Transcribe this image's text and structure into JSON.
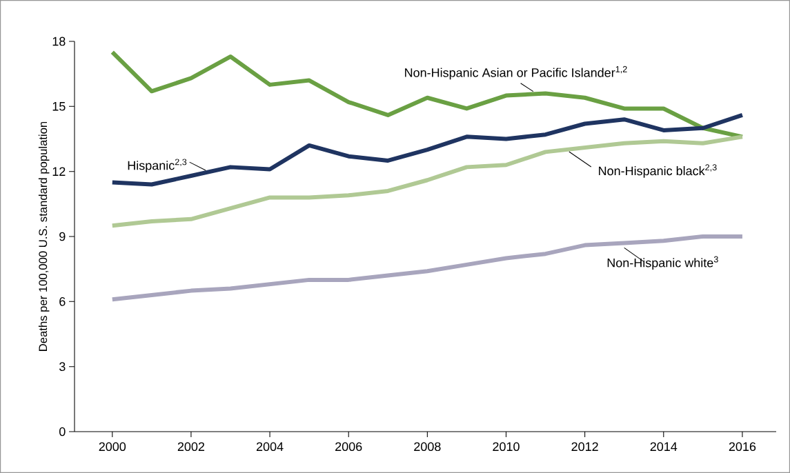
{
  "chart_data": {
    "type": "line",
    "ylabel": "Deaths per 100,000 U.S. standard population",
    "x": [
      2000,
      2001,
      2002,
      2003,
      2004,
      2005,
      2006,
      2007,
      2008,
      2009,
      2010,
      2011,
      2012,
      2013,
      2014,
      2015,
      2016
    ],
    "series": [
      {
        "name": "Non-Hispanic Asian or Pacific Islander$^{1,2}$",
        "color": "#6aa043",
        "values": [
          17.5,
          15.7,
          16.3,
          17.3,
          16.0,
          16.2,
          15.2,
          14.6,
          15.4,
          14.9,
          15.5,
          15.6,
          15.4,
          14.9,
          14.9,
          14.0,
          13.6
        ]
      },
      {
        "name": "Hispanic$^{2,3}$",
        "color": "#1f3461",
        "values": [
          11.5,
          11.4,
          11.8,
          12.2,
          12.1,
          13.2,
          12.7,
          12.5,
          13.0,
          13.6,
          13.5,
          13.7,
          14.2,
          14.4,
          13.9,
          14.0,
          14.6
        ]
      },
      {
        "name": "Non-Hispanic black$^{2,3}$",
        "color": "#b0c994",
        "values": [
          9.5,
          9.7,
          9.8,
          10.3,
          10.8,
          10.8,
          10.9,
          11.1,
          11.6,
          12.2,
          12.3,
          12.9,
          13.1,
          13.3,
          13.4,
          13.3,
          13.6
        ]
      },
      {
        "name": "Non-Hispanic white$^{3}$",
        "color": "#a8a5bd",
        "values": [
          6.1,
          6.3,
          6.5,
          6.6,
          6.8,
          7.0,
          7.0,
          7.2,
          7.4,
          7.7,
          8.0,
          8.2,
          8.6,
          8.7,
          8.8,
          9.0,
          9.0
        ]
      }
    ],
    "xlim": [
      1999.04,
      2016.86
    ],
    "ylim": [
      0,
      18
    ],
    "xticks": [
      2000,
      2002,
      2004,
      2006,
      2008,
      2010,
      2012,
      2014,
      2016
    ],
    "yticks": [
      0,
      3,
      6,
      9,
      12,
      15,
      18
    ],
    "grid": false,
    "marker": "none",
    "line_style": "solid"
  }
}
